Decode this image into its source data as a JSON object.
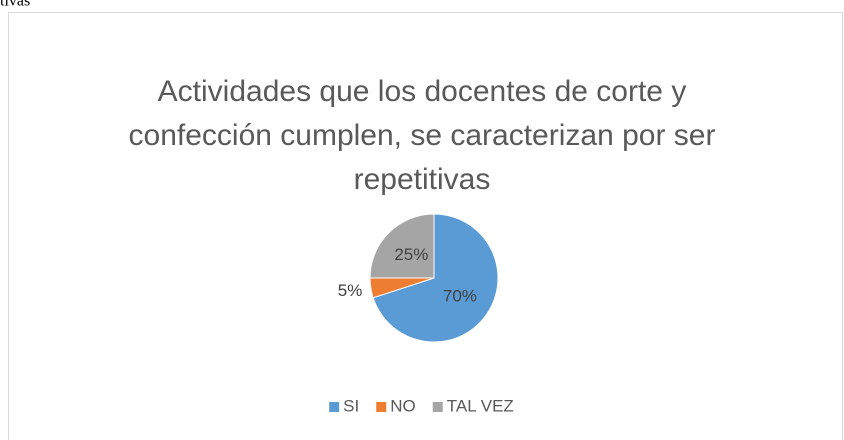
{
  "caption": "tivas",
  "chart_data": {
    "type": "pie",
    "title": [
      "Actividades que los docentes de corte y",
      "confección cumplen, se caracterizan por ser",
      "repetitivas"
    ],
    "categories": [
      "SI",
      "NO",
      "TAL VEZ"
    ],
    "values": [
      70,
      5,
      25
    ],
    "value_labels": [
      "70%",
      "5%",
      "25%"
    ],
    "colors": [
      "#5b9bd5",
      "#ed7d31",
      "#a5a5a5"
    ],
    "legend": "bottom"
  }
}
